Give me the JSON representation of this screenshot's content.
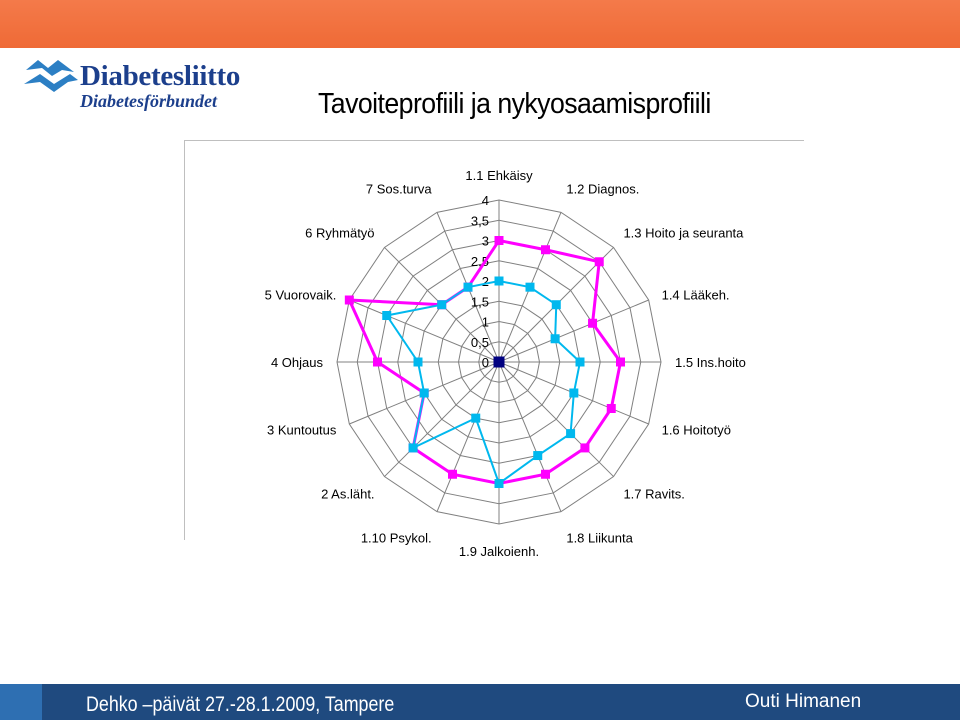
{
  "header": {
    "logo_name": "Diabetesliitto",
    "logo_subname": "Diabetesförbundet",
    "title": "Tavoiteprofiili ja nykyosaamisprofiili"
  },
  "footer": {
    "event": "Dehko –päivät 27.-28.1.2009, Tampere",
    "author": "Outi Himanen"
  },
  "colors": {
    "top_bar": "#ef6a36",
    "bottom_bar": "#1f4a7f",
    "logo": "#1c3f8c",
    "target_series": "#ff00ff",
    "current_series": "#00b8ee",
    "center_marker": "#000080"
  },
  "chart_data": {
    "type": "radar",
    "title": "",
    "categories": [
      "1.1 Ehkäisy",
      "1.2 Diagnos.",
      "1.3 Hoito ja seuranta",
      "1.4 Lääkeh.",
      "1.5 Ins.hoito",
      "1.6 Hoitotyö",
      "1.7 Ravits.",
      "1.8 Liikunta",
      "1.9 Jalkoienh.",
      "1.10 Psykol.",
      "2 As.läht.",
      "3 Kuntoutus",
      "4 Ohjaus",
      "5 Vuorovaik.",
      "6 Ryhmätyö",
      "7 Sos.turva"
    ],
    "r_ticks": [
      "0",
      "0,5",
      "1",
      "1,5",
      "2",
      "2,5",
      "3",
      "3,5",
      "4"
    ],
    "rlim": [
      0,
      4
    ],
    "grid": true,
    "legend": "none",
    "series": [
      {
        "values": [
          3,
          3,
          3.5,
          2.5,
          3,
          3,
          3,
          3,
          3,
          3,
          3,
          2,
          3,
          4,
          2,
          2
        ]
      },
      {
        "values": [
          2,
          2,
          2,
          1.5,
          2,
          2,
          2.5,
          2.5,
          3,
          1.5,
          3,
          2,
          2,
          3,
          2,
          2
        ]
      },
      {
        "values": [
          0,
          0,
          0,
          0,
          0,
          0,
          0,
          0,
          0,
          0,
          0,
          0,
          0,
          0,
          0,
          0
        ]
      }
    ]
  }
}
